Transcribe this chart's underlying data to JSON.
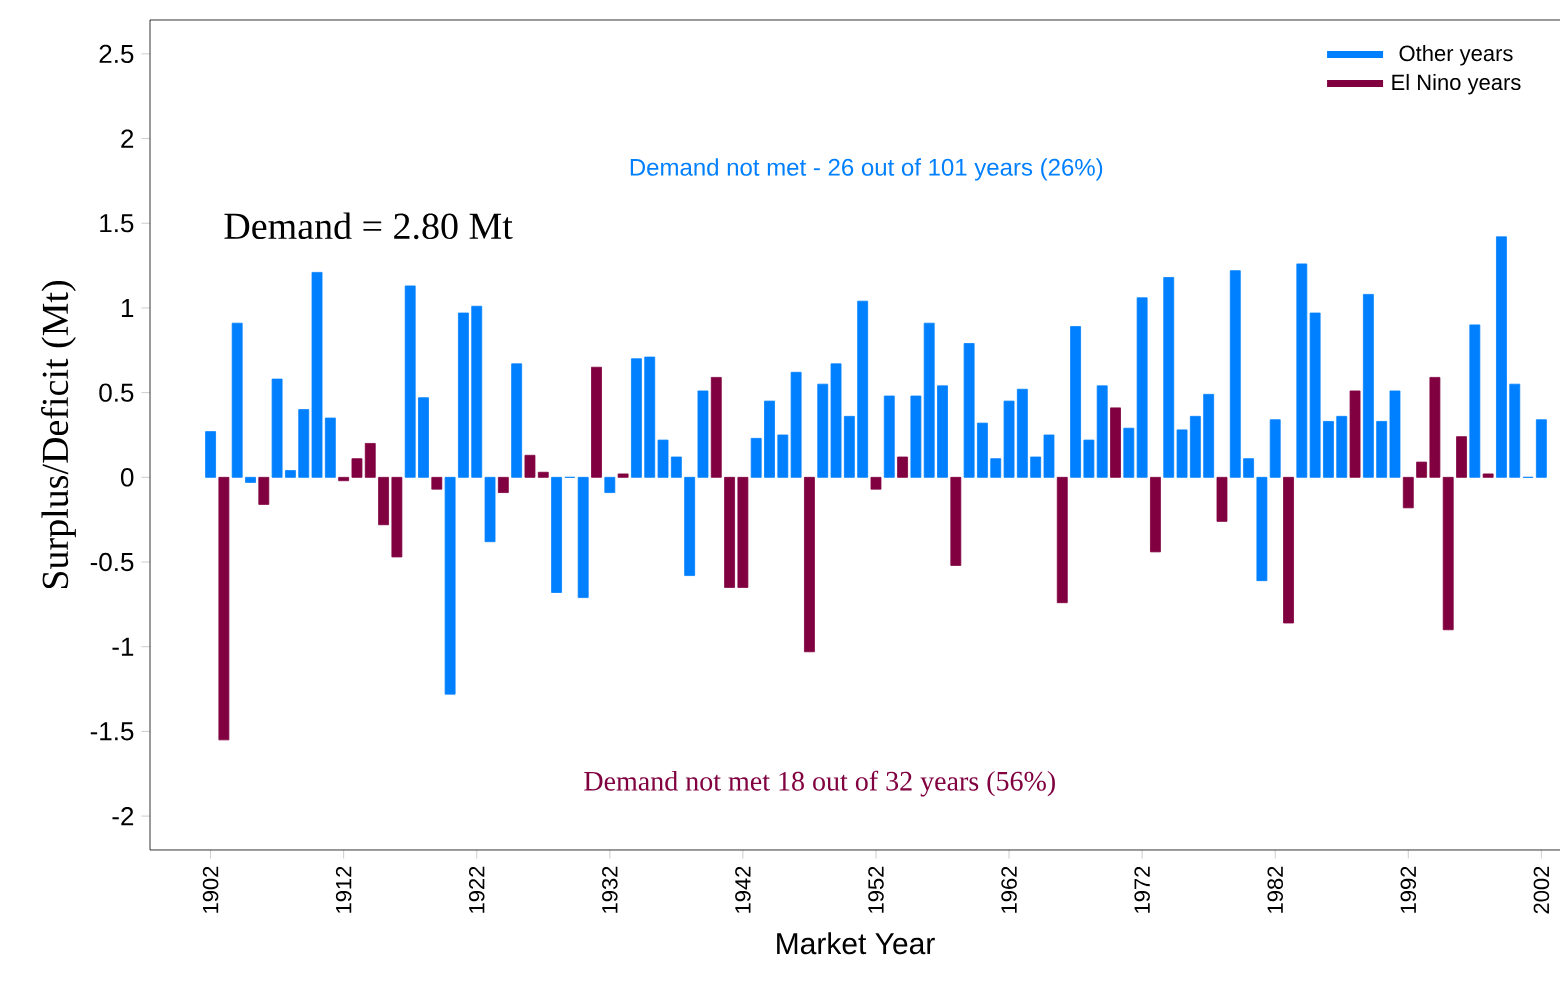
{
  "chart_data": {
    "type": "bar",
    "xlabel": "Market Year",
    "ylabel": "Surplus/Deficit (Mt)",
    "categories": [
      "1902",
      null,
      null,
      null,
      null,
      null,
      null,
      null,
      null,
      null,
      "1912",
      null,
      null,
      null,
      null,
      null,
      null,
      null,
      null,
      null,
      "1922",
      null,
      null,
      null,
      null,
      null,
      null,
      null,
      null,
      null,
      "1932",
      null,
      null,
      null,
      null,
      null,
      null,
      null,
      null,
      null,
      "1942",
      null,
      null,
      null,
      null,
      null,
      null,
      null,
      null,
      null,
      "1952",
      null,
      null,
      null,
      null,
      null,
      null,
      null,
      null,
      null,
      "1962",
      null,
      null,
      null,
      null,
      null,
      null,
      null,
      null,
      null,
      "1972",
      null,
      null,
      null,
      null,
      null,
      null,
      null,
      null,
      null,
      "1982",
      null,
      null,
      null,
      null,
      null,
      null,
      null,
      null,
      null,
      "1992",
      null,
      null,
      null,
      null,
      null,
      null,
      null,
      null,
      null,
      "2002"
    ],
    "series": [
      {
        "name": "Other years",
        "color": "#0080ff",
        "values": [
          0.27,
          null,
          0.91,
          -0.03,
          null,
          0.58,
          0.04,
          0.4,
          1.21,
          0.35,
          null,
          null,
          null,
          null,
          null,
          1.13,
          0.47,
          null,
          -1.28,
          0.97,
          1.01,
          -0.38,
          null,
          0.67,
          null,
          null,
          -0.68,
          0,
          -0.71,
          null,
          -0.09,
          null,
          0.7,
          0.71,
          0.22,
          0.12,
          -0.58,
          0.51,
          null,
          null,
          null,
          0.23,
          0.45,
          0.25,
          0.62,
          null,
          0.55,
          0.67,
          0.36,
          1.04,
          null,
          0.48,
          null,
          0.48,
          0.91,
          0.54,
          null,
          0.79,
          0.32,
          0.11,
          0.45,
          0.52,
          0.12,
          0.25,
          null,
          0.89,
          0.22,
          0.54,
          null,
          0.29,
          1.06,
          null,
          1.18,
          0.28,
          0.36,
          0.49,
          null,
          1.22,
          0.11,
          -0.61,
          0.34,
          null,
          1.26,
          0.97,
          0.33,
          0.36,
          null,
          1.08,
          0.33,
          0.51,
          null,
          null,
          null,
          null,
          null,
          0.9,
          null,
          1.42,
          0.55,
          0,
          0.34
        ]
      },
      {
        "name": "El Nino years",
        "color": "#800040",
        "values": [
          null,
          -1.55,
          null,
          null,
          -0.16,
          null,
          null,
          null,
          null,
          null,
          -0.02,
          0.11,
          0.2,
          -0.28,
          -0.47,
          null,
          null,
          -0.07,
          null,
          null,
          null,
          null,
          -0.09,
          null,
          0.13,
          0.03,
          null,
          null,
          null,
          0.65,
          null,
          0.02,
          null,
          null,
          null,
          null,
          null,
          null,
          0.59,
          -0.65,
          -0.65,
          null,
          null,
          null,
          null,
          -1.03,
          null,
          null,
          null,
          null,
          -0.07,
          null,
          0.12,
          null,
          null,
          null,
          -0.52,
          null,
          null,
          null,
          null,
          null,
          null,
          null,
          -0.74,
          null,
          null,
          null,
          0.41,
          null,
          null,
          -0.44,
          null,
          null,
          null,
          null,
          -0.26,
          null,
          null,
          null,
          null,
          -0.86,
          null,
          null,
          null,
          null,
          0.51,
          null,
          null,
          null,
          -0.18,
          0.09,
          0.59,
          -0.9,
          0.24,
          null,
          0.02,
          null,
          null,
          null,
          null
        ]
      }
    ],
    "ylim": [
      -2.2,
      2.7
    ],
    "yticks": [
      -2,
      -1.5,
      -1,
      -0.5,
      0,
      0.5,
      1,
      1.5,
      2,
      2.5
    ],
    "legend": "top right",
    "annotations": [
      "Demand not met - 26 out of 101 years (26%)",
      "Demand =  2.80 Mt",
      "Demand not met 18 out of 32 years (56%)"
    ]
  }
}
